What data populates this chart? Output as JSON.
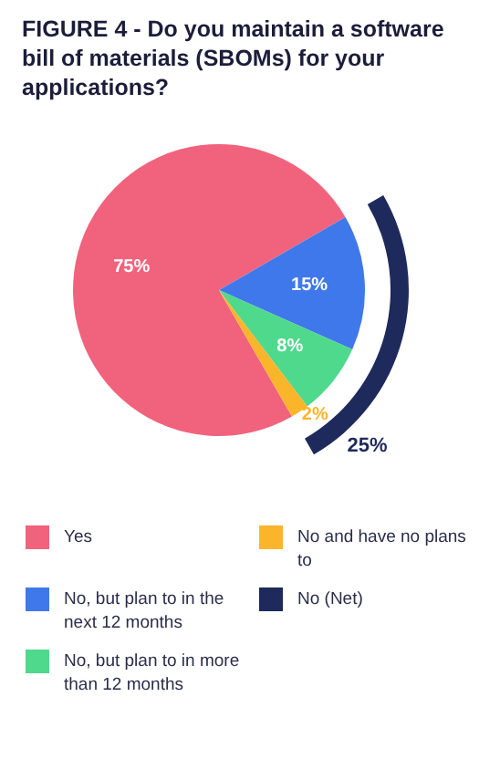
{
  "chart_data": {
    "type": "pie",
    "title": "FIGURE 4 - Do you maintain a software bill of materials (SBOMs) for your applications?",
    "categories": [
      "Yes",
      "No, but plan to in the next 12 months",
      "No, but plan to in more than 12 months",
      "No and have no plans to",
      "No (Net)"
    ],
    "colors": [
      "#f1637c",
      "#3f78ea",
      "#4fd98c",
      "#fbb52b",
      "#1f2a5c"
    ],
    "series": [
      {
        "values": [
          75,
          15,
          8,
          2,
          null
        ],
        "value_labels": [
          "75%",
          "15%",
          "8%",
          "2%",
          null
        ]
      },
      {
        "values": [
          null,
          null,
          null,
          null,
          25
        ],
        "value_labels": [
          null,
          null,
          null,
          null,
          "25%"
        ]
      }
    ],
    "data_labels": true,
    "legend": "bottom"
  }
}
